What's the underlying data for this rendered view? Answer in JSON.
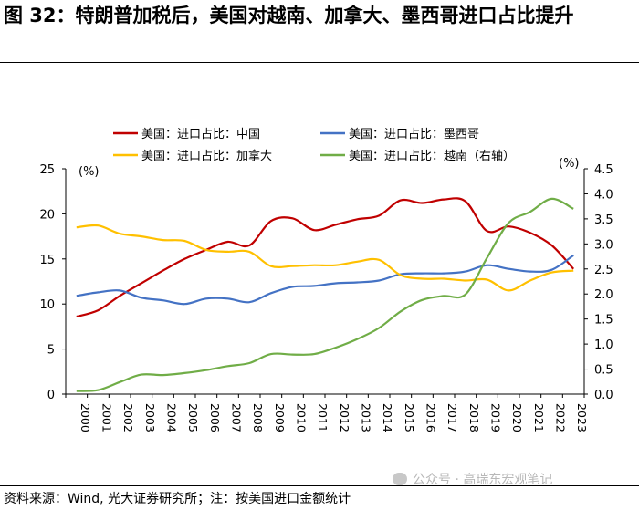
{
  "title": "图 32：特朗普加税后，美国对越南、加拿大、墨西哥进口占比提升",
  "source": "资料来源：Wind, 光大证券研究所；注：按美国进口金额统计",
  "watermark": "公众号 · 高瑞东宏观笔记",
  "chart_data": {
    "type": "line",
    "title": "",
    "xlabel": "",
    "ylabel": "(%)",
    "ylabel_right": "(%)",
    "ylim": [
      0,
      25
    ],
    "ylim_right": [
      0,
      4.5
    ],
    "yticks": [
      "0",
      "5",
      "10",
      "15",
      "20",
      "25"
    ],
    "yticks_right": [
      "0.0",
      "0.5",
      "1.0",
      "1.5",
      "2.0",
      "2.5",
      "3.0",
      "3.5",
      "4.0",
      "4.5"
    ],
    "x": [
      "2000",
      "2001",
      "2002",
      "2003",
      "2004",
      "2005",
      "2006",
      "2007",
      "2008",
      "2009",
      "2010",
      "2011",
      "2012",
      "2013",
      "2014",
      "2015",
      "2016",
      "2017",
      "2018",
      "2019",
      "2020",
      "2021",
      "2022",
      "2023"
    ],
    "series": [
      {
        "name": "美国：进口占比：中国",
        "axis": "left",
        "color": "#c00000",
        "values": [
          8.6,
          9.3,
          10.9,
          12.3,
          13.7,
          15.0,
          16.0,
          16.9,
          16.5,
          19.2,
          19.5,
          18.2,
          18.8,
          19.4,
          19.8,
          21.5,
          21.2,
          21.6,
          21.4,
          18.1,
          18.6,
          17.9,
          16.5,
          13.9
        ]
      },
      {
        "name": "美国：进口占比：墨西哥",
        "axis": "left",
        "color": "#4472c4",
        "values": [
          10.9,
          11.3,
          11.5,
          10.7,
          10.4,
          10.0,
          10.6,
          10.6,
          10.2,
          11.2,
          11.9,
          12.0,
          12.3,
          12.4,
          12.6,
          13.3,
          13.4,
          13.4,
          13.6,
          14.3,
          13.9,
          13.6,
          13.8,
          15.4
        ]
      },
      {
        "name": "美国：进口占比：加拿大",
        "axis": "left",
        "color": "#ffc000",
        "values": [
          18.5,
          18.7,
          17.8,
          17.5,
          17.1,
          17.0,
          16.0,
          15.8,
          15.8,
          14.2,
          14.2,
          14.3,
          14.3,
          14.7,
          14.9,
          13.2,
          12.8,
          12.8,
          12.6,
          12.7,
          11.5,
          12.6,
          13.5,
          13.7
        ]
      },
      {
        "name": "美国：进口占比：越南（右轴）",
        "axis": "right",
        "color": "#70ad47",
        "values": [
          0.06,
          0.08,
          0.24,
          0.39,
          0.38,
          0.42,
          0.48,
          0.56,
          0.62,
          0.8,
          0.79,
          0.8,
          0.93,
          1.1,
          1.32,
          1.65,
          1.88,
          1.96,
          1.99,
          2.72,
          3.42,
          3.64,
          3.9,
          3.7
        ]
      }
    ],
    "legend": "top"
  }
}
